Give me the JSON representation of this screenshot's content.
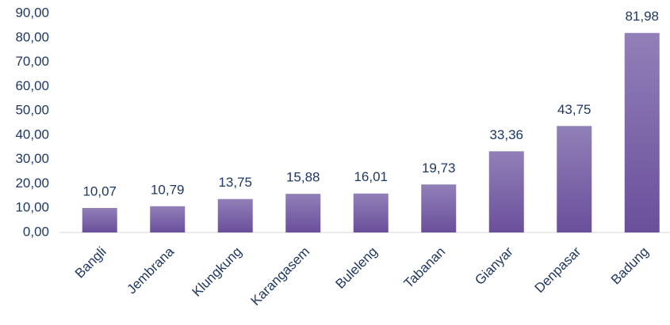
{
  "chart_data": {
    "type": "bar",
    "categories": [
      "Bangli",
      "Jembrana",
      "Klungkung",
      "Karangasem",
      "Buleleng",
      "Tabanan",
      "Gianyar",
      "Denpasar",
      "Badung"
    ],
    "values": [
      10.07,
      10.79,
      13.75,
      15.88,
      16.01,
      19.73,
      33.36,
      43.75,
      81.98
    ],
    "value_labels": [
      "10,07",
      "10,79",
      "13,75",
      "15,88",
      "16,01",
      "19,73",
      "33,36",
      "43,75",
      "81,98"
    ],
    "color": "#7b63a8",
    "ylim": [
      0,
      90
    ],
    "yticks": [
      {
        "value": 0,
        "label": "0,00"
      },
      {
        "value": 10,
        "label": "10,00"
      },
      {
        "value": 20,
        "label": "20,00"
      },
      {
        "value": 30,
        "label": "30,00"
      },
      {
        "value": 40,
        "label": "40,00"
      },
      {
        "value": 50,
        "label": "50,00"
      },
      {
        "value": 60,
        "label": "60,00"
      },
      {
        "value": 70,
        "label": "70,00"
      },
      {
        "value": 80,
        "label": "80,00"
      },
      {
        "value": 90,
        "label": "90,00"
      }
    ],
    "grid": false
  }
}
